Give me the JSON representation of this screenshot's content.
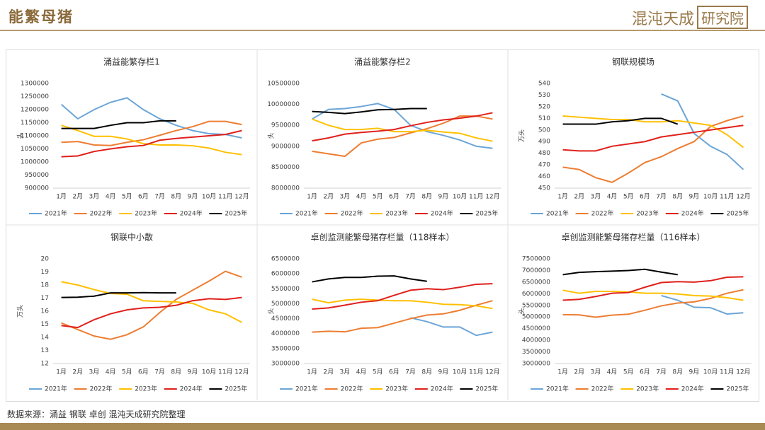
{
  "header": {
    "title": "能繁母猪",
    "logo_main": "混沌天成",
    "logo_box": "研究院"
  },
  "footer": {
    "source": "数据来源：涌益 钢联 卓创 混沌天成研究院整理"
  },
  "chart_data": [
    {
      "type": "line",
      "title": "涌益能繁存栏1",
      "ylabel": "头",
      "categories": [
        "1月",
        "2月",
        "3月",
        "4月",
        "5月",
        "6月",
        "7月",
        "8月",
        "9月",
        "10月",
        "11月",
        "12月"
      ],
      "ylim": [
        900000,
        1300000
      ],
      "yticks": [
        900000,
        950000,
        1000000,
        1050000,
        1100000,
        1150000,
        1200000,
        1250000,
        1300000
      ],
      "series": [
        {
          "name": "2021年",
          "color": "#6ba5d7",
          "values": [
            1220000,
            1165000,
            1200000,
            1228000,
            1245000,
            1200000,
            1165000,
            1140000,
            1120000,
            1108000,
            1105000,
            1092000
          ]
        },
        {
          "name": "2022年",
          "color": "#ed7d31",
          "values": [
            1075000,
            1078000,
            1065000,
            1063000,
            1075000,
            1085000,
            1102000,
            1120000,
            1135000,
            1155000,
            1155000,
            1143000
          ]
        },
        {
          "name": "2023年",
          "color": "#ffc000",
          "values": [
            1140000,
            1120000,
            1098000,
            1098000,
            1088000,
            1070000,
            1065000,
            1065000,
            1062000,
            1053000,
            1037000,
            1028000
          ]
        },
        {
          "name": "2024年",
          "color": "#e0201b",
          "values": [
            1020000,
            1023000,
            1040000,
            1050000,
            1058000,
            1063000,
            1083000,
            1090000,
            1095000,
            1100000,
            1105000,
            1120000
          ]
        },
        {
          "name": "2025年",
          "color": "#000000",
          "values": [
            1128000,
            1128000,
            1128000,
            1140000,
            1150000,
            1150000,
            1157000,
            1157000,
            null,
            null,
            null,
            null
          ]
        }
      ]
    },
    {
      "type": "line",
      "title": "涌益能繁存栏2",
      "ylabel": "头",
      "categories": [
        "1月",
        "2月",
        "3月",
        "4月",
        "5月",
        "6月",
        "7月",
        "8月",
        "9月",
        "10月",
        "11月",
        "12月"
      ],
      "ylim": [
        8000000,
        10500000
      ],
      "yticks": [
        8000000,
        8500000,
        9000000,
        9500000,
        10000000,
        10500000
      ],
      "series": [
        {
          "name": "2021年",
          "color": "#6ba5d7",
          "values": [
            9650000,
            9880000,
            9900000,
            9950000,
            10020000,
            9880000,
            9500000,
            9350000,
            9260000,
            9150000,
            9000000,
            8950000
          ]
        },
        {
          "name": "2022年",
          "color": "#ed7d31",
          "values": [
            8880000,
            8820000,
            8760000,
            9080000,
            9170000,
            9210000,
            9320000,
            9420000,
            9550000,
            9720000,
            9720000,
            9650000
          ]
        },
        {
          "name": "2023年",
          "color": "#ffc000",
          "values": [
            9650000,
            9500000,
            9400000,
            9400000,
            9430000,
            9350000,
            9350000,
            9380000,
            9340000,
            9310000,
            9200000,
            9120000
          ]
        },
        {
          "name": "2024年",
          "color": "#e0201b",
          "values": [
            9130000,
            9200000,
            9290000,
            9330000,
            9360000,
            9400000,
            9490000,
            9570000,
            9630000,
            9670000,
            9720000,
            9800000
          ]
        },
        {
          "name": "2025年",
          "color": "#000000",
          "values": [
            9830000,
            9810000,
            9780000,
            9820000,
            9870000,
            9880000,
            9900000,
            9900000,
            null,
            null,
            null,
            null
          ]
        }
      ]
    },
    {
      "type": "line",
      "title": "钢联规模场",
      "ylabel": "万头",
      "categories": [
        "1月",
        "2月",
        "3月",
        "4月",
        "5月",
        "6月",
        "7月",
        "8月",
        "9月",
        "10月",
        "11月",
        "12月"
      ],
      "ylim": [
        450,
        540
      ],
      "yticks": [
        450,
        460,
        470,
        480,
        490,
        500,
        510,
        520,
        530,
        540
      ],
      "series": [
        {
          "name": "2021年",
          "color": "#6ba5d7",
          "values": [
            null,
            null,
            null,
            null,
            null,
            null,
            531,
            525,
            497,
            486,
            479,
            466
          ]
        },
        {
          "name": "2022年",
          "color": "#ed7d31",
          "values": [
            468,
            466,
            459,
            455,
            463,
            472,
            477,
            484,
            490,
            503,
            508,
            512
          ]
        },
        {
          "name": "2023年",
          "color": "#ffc000",
          "values": [
            512,
            511,
            510,
            509,
            509,
            507,
            507,
            508,
            506,
            504,
            496,
            485
          ]
        },
        {
          "name": "2024年",
          "color": "#e0201b",
          "values": [
            483,
            482,
            482,
            486,
            488,
            490,
            494,
            496,
            498,
            500,
            502,
            504
          ]
        },
        {
          "name": "2025年",
          "color": "#000000",
          "values": [
            505,
            505,
            505,
            507,
            508,
            510,
            510,
            505,
            null,
            null,
            null,
            null
          ]
        }
      ]
    },
    {
      "type": "line",
      "title": "钢联中小散",
      "ylabel": "万头",
      "categories": [
        "1月",
        "2月",
        "3月",
        "4月",
        "5月",
        "6月",
        "7月",
        "8月",
        "9月",
        "10月",
        "11月",
        "12月"
      ],
      "ylim": [
        12,
        20
      ],
      "yticks": [
        12,
        13,
        14,
        15,
        16,
        17,
        18,
        19,
        20
      ],
      "series": [
        {
          "name": "2021年",
          "color": "#6ba5d7",
          "values": [
            null,
            null,
            null,
            null,
            null,
            null,
            null,
            null,
            null,
            null,
            null,
            null
          ]
        },
        {
          "name": "2022年",
          "color": "#ed7d31",
          "values": [
            15.1,
            14.6,
            14.1,
            13.85,
            14.2,
            14.8,
            15.9,
            16.9,
            17.6,
            18.3,
            19.05,
            18.6
          ]
        },
        {
          "name": "2023年",
          "color": "#ffc000",
          "values": [
            18.25,
            18.0,
            17.65,
            17.35,
            17.3,
            16.8,
            16.75,
            16.7,
            16.6,
            16.1,
            15.8,
            15.15
          ]
        },
        {
          "name": "2024年",
          "color": "#e0201b",
          "values": [
            14.9,
            14.75,
            15.35,
            15.8,
            16.1,
            16.25,
            16.3,
            16.45,
            16.8,
            16.95,
            16.9,
            17.05
          ]
        },
        {
          "name": "2025年",
          "color": "#000000",
          "values": [
            17.05,
            17.07,
            17.15,
            17.4,
            17.4,
            17.42,
            17.4,
            17.4,
            null,
            null,
            null,
            null
          ]
        }
      ]
    },
    {
      "type": "line",
      "title": "卓创监测能繁母猪存栏量（118样本）",
      "ylabel": "头",
      "categories": [
        "1月",
        "2月",
        "3月",
        "4月",
        "5月",
        "6月",
        "7月",
        "8月",
        "9月",
        "10月",
        "11月",
        "12月"
      ],
      "ylim": [
        3000000,
        6500000
      ],
      "yticks": [
        3000000,
        3500000,
        4000000,
        4500000,
        5000000,
        5500000,
        6000000,
        6500000
      ],
      "series": [
        {
          "name": "2021年",
          "color": "#6ba5d7",
          "values": [
            null,
            null,
            null,
            null,
            null,
            null,
            4530000,
            4400000,
            4220000,
            4220000,
            3940000,
            4050000
          ]
        },
        {
          "name": "2022年",
          "color": "#ed7d31",
          "values": [
            4050000,
            4080000,
            4060000,
            4180000,
            4200000,
            4350000,
            4500000,
            4620000,
            4660000,
            4780000,
            4950000,
            5100000
          ]
        },
        {
          "name": "2023年",
          "color": "#ffc000",
          "values": [
            5150000,
            5030000,
            5120000,
            5150000,
            5120000,
            5100000,
            5100000,
            5050000,
            4980000,
            4970000,
            4930000,
            4840000
          ]
        },
        {
          "name": "2024年",
          "color": "#e0201b",
          "values": [
            4820000,
            4860000,
            4950000,
            5050000,
            5100000,
            5280000,
            5450000,
            5500000,
            5470000,
            5550000,
            5650000,
            5670000
          ]
        },
        {
          "name": "2025年",
          "color": "#000000",
          "values": [
            5730000,
            5830000,
            5880000,
            5880000,
            5920000,
            5930000,
            5830000,
            5750000,
            null,
            null,
            null,
            null
          ]
        }
      ]
    },
    {
      "type": "line",
      "title": "卓创监测能繁母猪存栏量（116样本）",
      "ylabel": "头",
      "categories": [
        "1月",
        "2月",
        "3月",
        "4月",
        "5月",
        "6月",
        "7月",
        "8月",
        "9月",
        "10月",
        "11月",
        "12月"
      ],
      "ylim": [
        3000000,
        7500000
      ],
      "yticks": [
        3000000,
        3500000,
        4000000,
        4500000,
        5000000,
        5500000,
        6000000,
        6500000,
        7000000,
        7500000
      ],
      "series": [
        {
          "name": "2021年",
          "color": "#6ba5d7",
          "values": [
            null,
            null,
            null,
            null,
            null,
            null,
            5920000,
            5720000,
            5420000,
            5400000,
            5130000,
            5180000
          ]
        },
        {
          "name": "2022年",
          "color": "#ed7d31",
          "values": [
            5100000,
            5090000,
            4990000,
            5080000,
            5120000,
            5290000,
            5480000,
            5600000,
            5650000,
            5800000,
            6020000,
            6170000
          ]
        },
        {
          "name": "2023年",
          "color": "#ffc000",
          "values": [
            6150000,
            6020000,
            6100000,
            6100000,
            6080000,
            6020000,
            6020000,
            5990000,
            5920000,
            5900000,
            5830000,
            5720000
          ]
        },
        {
          "name": "2024年",
          "color": "#e0201b",
          "values": [
            5720000,
            5760000,
            5880000,
            6020000,
            6050000,
            6280000,
            6480000,
            6520000,
            6500000,
            6560000,
            6710000,
            6730000
          ]
        },
        {
          "name": "2025年",
          "color": "#000000",
          "values": [
            6820000,
            6920000,
            6950000,
            6970000,
            7000000,
            7050000,
            6930000,
            6820000,
            null,
            null,
            null,
            null
          ]
        }
      ]
    }
  ]
}
